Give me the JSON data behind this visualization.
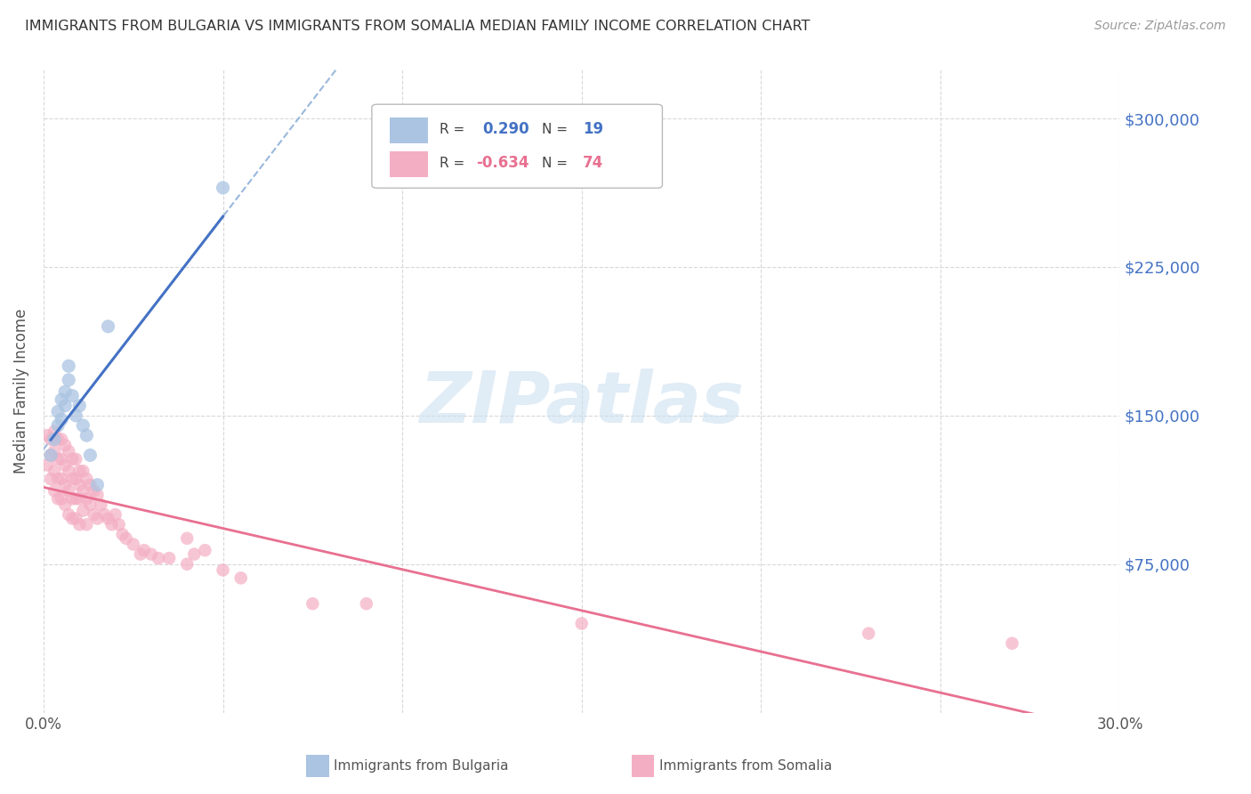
{
  "title": "IMMIGRANTS FROM BULGARIA VS IMMIGRANTS FROM SOMALIA MEDIAN FAMILY INCOME CORRELATION CHART",
  "source": "Source: ZipAtlas.com",
  "ylabel": "Median Family Income",
  "xlim": [
    0.0,
    0.3
  ],
  "ylim": [
    0,
    325000
  ],
  "yticks": [
    75000,
    150000,
    225000,
    300000
  ],
  "ytick_labels": [
    "$75,000",
    "$150,000",
    "$225,000",
    "$300,000"
  ],
  "xticks": [
    0.0,
    0.05,
    0.1,
    0.15,
    0.2,
    0.25,
    0.3
  ],
  "xtick_labels": [
    "0.0%",
    "",
    "",
    "",
    "",
    "",
    "30.0%"
  ],
  "background_color": "#ffffff",
  "grid_color": "#d8d8d8",
  "watermark_text": "ZIPatlas",
  "bulgaria": {
    "name": "Immigrants from Bulgaria",
    "color": "#aac4e2",
    "R": 0.29,
    "N": 19,
    "trend_color": "#4472c4",
    "trend_dashed_color": "#9ab8dc",
    "x": [
      0.002,
      0.003,
      0.004,
      0.004,
      0.005,
      0.005,
      0.006,
      0.006,
      0.007,
      0.007,
      0.008,
      0.009,
      0.01,
      0.011,
      0.012,
      0.013,
      0.015,
      0.018,
      0.05
    ],
    "y": [
      130000,
      138000,
      145000,
      152000,
      158000,
      148000,
      162000,
      155000,
      168000,
      175000,
      160000,
      150000,
      155000,
      145000,
      140000,
      130000,
      115000,
      195000,
      265000
    ]
  },
  "somalia": {
    "name": "Immigrants from Somalia",
    "color": "#f4aec4",
    "R": -0.634,
    "N": 74,
    "trend_color": "#e87090",
    "x": [
      0.001,
      0.001,
      0.002,
      0.002,
      0.002,
      0.003,
      0.003,
      0.003,
      0.003,
      0.004,
      0.004,
      0.004,
      0.004,
      0.005,
      0.005,
      0.005,
      0.005,
      0.006,
      0.006,
      0.006,
      0.006,
      0.007,
      0.007,
      0.007,
      0.007,
      0.008,
      0.008,
      0.008,
      0.008,
      0.009,
      0.009,
      0.009,
      0.009,
      0.01,
      0.01,
      0.01,
      0.01,
      0.011,
      0.011,
      0.011,
      0.012,
      0.012,
      0.012,
      0.013,
      0.013,
      0.014,
      0.014,
      0.015,
      0.015,
      0.016,
      0.017,
      0.018,
      0.019,
      0.02,
      0.021,
      0.022,
      0.023,
      0.025,
      0.027,
      0.028,
      0.03,
      0.032,
      0.035,
      0.04,
      0.04,
      0.042,
      0.045,
      0.05,
      0.055,
      0.075,
      0.09,
      0.15,
      0.23,
      0.27
    ],
    "y": [
      140000,
      125000,
      138000,
      130000,
      118000,
      142000,
      132000,
      122000,
      112000,
      138000,
      128000,
      118000,
      108000,
      138000,
      128000,
      118000,
      108000,
      135000,
      125000,
      115000,
      105000,
      132000,
      122000,
      112000,
      100000,
      128000,
      118000,
      108000,
      98000,
      128000,
      118000,
      108000,
      98000,
      122000,
      115000,
      108000,
      95000,
      122000,
      112000,
      102000,
      118000,
      108000,
      95000,
      115000,
      105000,
      112000,
      100000,
      110000,
      98000,
      105000,
      100000,
      98000,
      95000,
      100000,
      95000,
      90000,
      88000,
      85000,
      80000,
      82000,
      80000,
      78000,
      78000,
      75000,
      88000,
      80000,
      82000,
      72000,
      68000,
      55000,
      55000,
      45000,
      40000,
      35000
    ]
  }
}
